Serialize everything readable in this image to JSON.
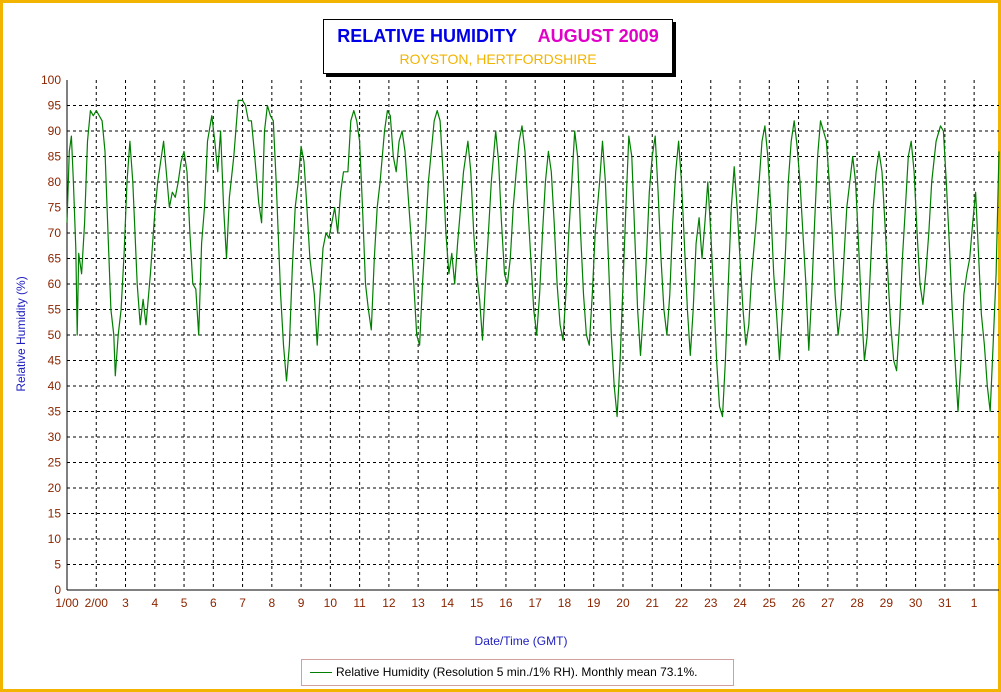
{
  "title": "RELATIVE HUMIDITY",
  "month": "AUGUST 2009",
  "subtitle": "ROYSTON, HERTFORDSHIRE",
  "legend": "Relative Humidity (Resolution 5 min./1% RH). Monthly mean 73.1%.",
  "colors": {
    "frame": "#f2b400",
    "title": "#0000e6",
    "month": "#e000c8",
    "subtitle": "#f2b400",
    "series": "#007f00",
    "tick_labels": "#8b2500",
    "axis_titles": "#2020c0"
  },
  "chart_data": {
    "type": "line",
    "ylabel": "Relative Humidity (%)",
    "xlabel": "Date/Time (GMT)",
    "ylim": [
      0,
      100
    ],
    "xlim": [
      0,
      31.85
    ],
    "yticks": [
      0,
      5,
      10,
      15,
      20,
      25,
      30,
      35,
      40,
      45,
      50,
      55,
      60,
      65,
      70,
      75,
      80,
      85,
      90,
      95,
      100
    ],
    "xtick_labels": [
      "1/00",
      "2/00",
      "3",
      "4",
      "5",
      "6",
      "7",
      "8",
      "9",
      "10",
      "11",
      "12",
      "13",
      "14",
      "15",
      "16",
      "17",
      "18",
      "19",
      "20",
      "21",
      "22",
      "23",
      "24",
      "25",
      "26",
      "27",
      "28",
      "29",
      "30",
      "31",
      "1"
    ],
    "grid": true,
    "legend_position": "bottom",
    "series": [
      {
        "name": "Relative Humidity (Resolution 5 min./1% RH). Monthly mean 73.1%.",
        "x_unit": "days since 1 Aug 2009 00:00 GMT",
        "points": [
          [
            0.0,
            72
          ],
          [
            0.08,
            86
          ],
          [
            0.15,
            89
          ],
          [
            0.22,
            80
          ],
          [
            0.3,
            67
          ],
          [
            0.35,
            50
          ],
          [
            0.4,
            66
          ],
          [
            0.5,
            62
          ],
          [
            0.6,
            72
          ],
          [
            0.7,
            88
          ],
          [
            0.8,
            94
          ],
          [
            0.9,
            93
          ],
          [
            1.0,
            94
          ],
          [
            1.1,
            93
          ],
          [
            1.2,
            92
          ],
          [
            1.3,
            86
          ],
          [
            1.4,
            70
          ],
          [
            1.5,
            55
          ],
          [
            1.6,
            50
          ],
          [
            1.65,
            42
          ],
          [
            1.75,
            50
          ],
          [
            1.85,
            55
          ],
          [
            1.95,
            66
          ],
          [
            2.05,
            80
          ],
          [
            2.15,
            88
          ],
          [
            2.25,
            80
          ],
          [
            2.4,
            60
          ],
          [
            2.5,
            52
          ],
          [
            2.6,
            57
          ],
          [
            2.7,
            52
          ],
          [
            2.85,
            62
          ],
          [
            3.0,
            74
          ],
          [
            3.1,
            80
          ],
          [
            3.3,
            88
          ],
          [
            3.5,
            75
          ],
          [
            3.6,
            78
          ],
          [
            3.7,
            77
          ],
          [
            3.8,
            80
          ],
          [
            3.9,
            84
          ],
          [
            4.0,
            86
          ],
          [
            4.1,
            82
          ],
          [
            4.2,
            70
          ],
          [
            4.3,
            60
          ],
          [
            4.4,
            59
          ],
          [
            4.5,
            50
          ],
          [
            4.6,
            68
          ],
          [
            4.7,
            75
          ],
          [
            4.8,
            88
          ],
          [
            4.95,
            93
          ],
          [
            5.05,
            88
          ],
          [
            5.15,
            82
          ],
          [
            5.25,
            90
          ],
          [
            5.35,
            75
          ],
          [
            5.45,
            65
          ],
          [
            5.55,
            77
          ],
          [
            5.7,
            85
          ],
          [
            5.85,
            96
          ],
          [
            6.0,
            96
          ],
          [
            6.1,
            95
          ],
          [
            6.2,
            92
          ],
          [
            6.3,
            92
          ],
          [
            6.4,
            86
          ],
          [
            6.55,
            76
          ],
          [
            6.65,
            72
          ],
          [
            6.75,
            90
          ],
          [
            6.85,
            95
          ],
          [
            6.95,
            93
          ],
          [
            7.05,
            92
          ],
          [
            7.15,
            80
          ],
          [
            7.3,
            58
          ],
          [
            7.4,
            48
          ],
          [
            7.5,
            41
          ],
          [
            7.6,
            48
          ],
          [
            7.7,
            63
          ],
          [
            7.8,
            75
          ],
          [
            7.9,
            80
          ],
          [
            8.0,
            87
          ],
          [
            8.1,
            84
          ],
          [
            8.2,
            75
          ],
          [
            8.3,
            65
          ],
          [
            8.45,
            58
          ],
          [
            8.55,
            48
          ],
          [
            8.65,
            58
          ],
          [
            8.75,
            67
          ],
          [
            8.85,
            70
          ],
          [
            8.95,
            69
          ],
          [
            9.05,
            72
          ],
          [
            9.15,
            75
          ],
          [
            9.25,
            70
          ],
          [
            9.35,
            78
          ],
          [
            9.45,
            82
          ],
          [
            9.6,
            82
          ],
          [
            9.7,
            92
          ],
          [
            9.8,
            94
          ],
          [
            9.9,
            92
          ],
          [
            10.0,
            88
          ],
          [
            10.1,
            75
          ],
          [
            10.2,
            60
          ],
          [
            10.3,
            55
          ],
          [
            10.4,
            51
          ],
          [
            10.5,
            65
          ],
          [
            10.6,
            75
          ],
          [
            10.7,
            80
          ],
          [
            10.85,
            90
          ],
          [
            10.95,
            94
          ],
          [
            11.05,
            93
          ],
          [
            11.15,
            85
          ],
          [
            11.25,
            82
          ],
          [
            11.35,
            88
          ],
          [
            11.45,
            90
          ],
          [
            11.55,
            86
          ],
          [
            11.65,
            78
          ],
          [
            11.75,
            70
          ],
          [
            11.85,
            60
          ],
          [
            11.95,
            50
          ],
          [
            12.05,
            48
          ],
          [
            12.15,
            60
          ],
          [
            12.25,
            70
          ],
          [
            12.35,
            80
          ],
          [
            12.45,
            86
          ],
          [
            12.55,
            92
          ],
          [
            12.65,
            94
          ],
          [
            12.75,
            92
          ],
          [
            12.85,
            82
          ],
          [
            12.95,
            70
          ],
          [
            13.05,
            62
          ],
          [
            13.15,
            66
          ],
          [
            13.25,
            60
          ],
          [
            13.35,
            68
          ],
          [
            13.45,
            75
          ],
          [
            13.55,
            82
          ],
          [
            13.7,
            88
          ],
          [
            13.8,
            82
          ],
          [
            13.9,
            70
          ],
          [
            14.0,
            62
          ],
          [
            14.1,
            57
          ],
          [
            14.2,
            49
          ],
          [
            14.3,
            60
          ],
          [
            14.4,
            70
          ],
          [
            14.5,
            80
          ],
          [
            14.65,
            90
          ],
          [
            14.75,
            84
          ],
          [
            14.85,
            72
          ],
          [
            14.95,
            62
          ],
          [
            15.05,
            60
          ],
          [
            15.15,
            65
          ],
          [
            15.25,
            75
          ],
          [
            15.35,
            82
          ],
          [
            15.45,
            88
          ],
          [
            15.55,
            91
          ],
          [
            15.65,
            86
          ],
          [
            15.75,
            75
          ],
          [
            15.85,
            65
          ],
          [
            15.95,
            55
          ],
          [
            16.05,
            50
          ],
          [
            16.15,
            58
          ],
          [
            16.25,
            70
          ],
          [
            16.35,
            80
          ],
          [
            16.45,
            86
          ],
          [
            16.55,
            82
          ],
          [
            16.65,
            72
          ],
          [
            16.75,
            60
          ],
          [
            16.85,
            52
          ],
          [
            16.95,
            49
          ],
          [
            17.05,
            58
          ],
          [
            17.15,
            70
          ],
          [
            17.25,
            80
          ],
          [
            17.35,
            90
          ],
          [
            17.45,
            85
          ],
          [
            17.55,
            70
          ],
          [
            17.65,
            58
          ],
          [
            17.75,
            50
          ],
          [
            17.85,
            48
          ],
          [
            17.95,
            58
          ],
          [
            18.05,
            70
          ],
          [
            18.2,
            80
          ],
          [
            18.3,
            88
          ],
          [
            18.4,
            80
          ],
          [
            18.5,
            65
          ],
          [
            18.6,
            50
          ],
          [
            18.7,
            40
          ],
          [
            18.8,
            34
          ],
          [
            18.9,
            45
          ],
          [
            19.0,
            60
          ],
          [
            19.1,
            75
          ],
          [
            19.2,
            89
          ],
          [
            19.3,
            85
          ],
          [
            19.4,
            70
          ],
          [
            19.5,
            55
          ],
          [
            19.6,
            46
          ],
          [
            19.7,
            55
          ],
          [
            19.8,
            65
          ],
          [
            19.9,
            78
          ],
          [
            20.0,
            85
          ],
          [
            20.1,
            89
          ],
          [
            20.2,
            78
          ],
          [
            20.3,
            65
          ],
          [
            20.4,
            55
          ],
          [
            20.5,
            50
          ],
          [
            20.6,
            58
          ],
          [
            20.7,
            72
          ],
          [
            20.8,
            82
          ],
          [
            20.9,
            88
          ],
          [
            21.0,
            80
          ],
          [
            21.1,
            68
          ],
          [
            21.2,
            55
          ],
          [
            21.3,
            46
          ],
          [
            21.4,
            55
          ],
          [
            21.5,
            68
          ],
          [
            21.6,
            73
          ],
          [
            21.7,
            65
          ],
          [
            21.8,
            72
          ],
          [
            21.9,
            80
          ],
          [
            22.0,
            70
          ],
          [
            22.1,
            58
          ],
          [
            22.2,
            45
          ],
          [
            22.3,
            36
          ],
          [
            22.4,
            34
          ],
          [
            22.5,
            45
          ],
          [
            22.6,
            60
          ],
          [
            22.7,
            75
          ],
          [
            22.8,
            83
          ],
          [
            22.9,
            75
          ],
          [
            23.0,
            65
          ],
          [
            23.1,
            55
          ],
          [
            23.2,
            48
          ],
          [
            23.3,
            52
          ],
          [
            23.4,
            62
          ],
          [
            23.55,
            72
          ],
          [
            23.65,
            80
          ],
          [
            23.75,
            88
          ],
          [
            23.85,
            91
          ],
          [
            23.95,
            85
          ],
          [
            24.05,
            75
          ],
          [
            24.15,
            62
          ],
          [
            24.25,
            54
          ],
          [
            24.35,
            45
          ],
          [
            24.45,
            55
          ],
          [
            24.55,
            66
          ],
          [
            24.65,
            80
          ],
          [
            24.75,
            88
          ],
          [
            24.85,
            92
          ],
          [
            24.95,
            87
          ],
          [
            25.05,
            80
          ],
          [
            25.15,
            70
          ],
          [
            25.25,
            60
          ],
          [
            25.35,
            47
          ],
          [
            25.45,
            58
          ],
          [
            25.55,
            72
          ],
          [
            25.65,
            85
          ],
          [
            25.75,
            92
          ],
          [
            25.85,
            90
          ],
          [
            25.95,
            88
          ],
          [
            26.05,
            80
          ],
          [
            26.15,
            70
          ],
          [
            26.25,
            58
          ],
          [
            26.35,
            50
          ],
          [
            26.45,
            55
          ],
          [
            26.55,
            65
          ],
          [
            26.65,
            75
          ],
          [
            26.75,
            80
          ],
          [
            26.85,
            85
          ],
          [
            26.95,
            80
          ],
          [
            27.05,
            68
          ],
          [
            27.15,
            55
          ],
          [
            27.25,
            45
          ],
          [
            27.35,
            50
          ],
          [
            27.45,
            62
          ],
          [
            27.55,
            75
          ],
          [
            27.65,
            82
          ],
          [
            27.75,
            86
          ],
          [
            27.85,
            82
          ],
          [
            27.95,
            72
          ],
          [
            28.05,
            62
          ],
          [
            28.15,
            52
          ],
          [
            28.25,
            45
          ],
          [
            28.35,
            43
          ],
          [
            28.45,
            52
          ],
          [
            28.55,
            65
          ],
          [
            28.65,
            75
          ],
          [
            28.75,
            85
          ],
          [
            28.85,
            88
          ],
          [
            28.95,
            82
          ],
          [
            29.05,
            70
          ],
          [
            29.15,
            60
          ],
          [
            29.25,
            56
          ],
          [
            29.35,
            62
          ],
          [
            29.45,
            70
          ],
          [
            29.55,
            80
          ],
          [
            29.7,
            88
          ],
          [
            29.85,
            91
          ],
          [
            29.95,
            90
          ],
          [
            30.05,
            80
          ],
          [
            30.15,
            68
          ],
          [
            30.25,
            55
          ],
          [
            30.35,
            45
          ],
          [
            30.45,
            35
          ],
          [
            30.55,
            45
          ],
          [
            30.65,
            58
          ],
          [
            30.75,
            62
          ],
          [
            30.85,
            65
          ],
          [
            30.95,
            72
          ],
          [
            31.05,
            78
          ],
          [
            31.15,
            66
          ],
          [
            31.25,
            54
          ],
          [
            31.35,
            48
          ],
          [
            31.45,
            40
          ],
          [
            31.55,
            35
          ],
          [
            31.65,
            48
          ],
          [
            31.75,
            62
          ],
          [
            31.85,
            86
          ]
        ]
      }
    ]
  }
}
